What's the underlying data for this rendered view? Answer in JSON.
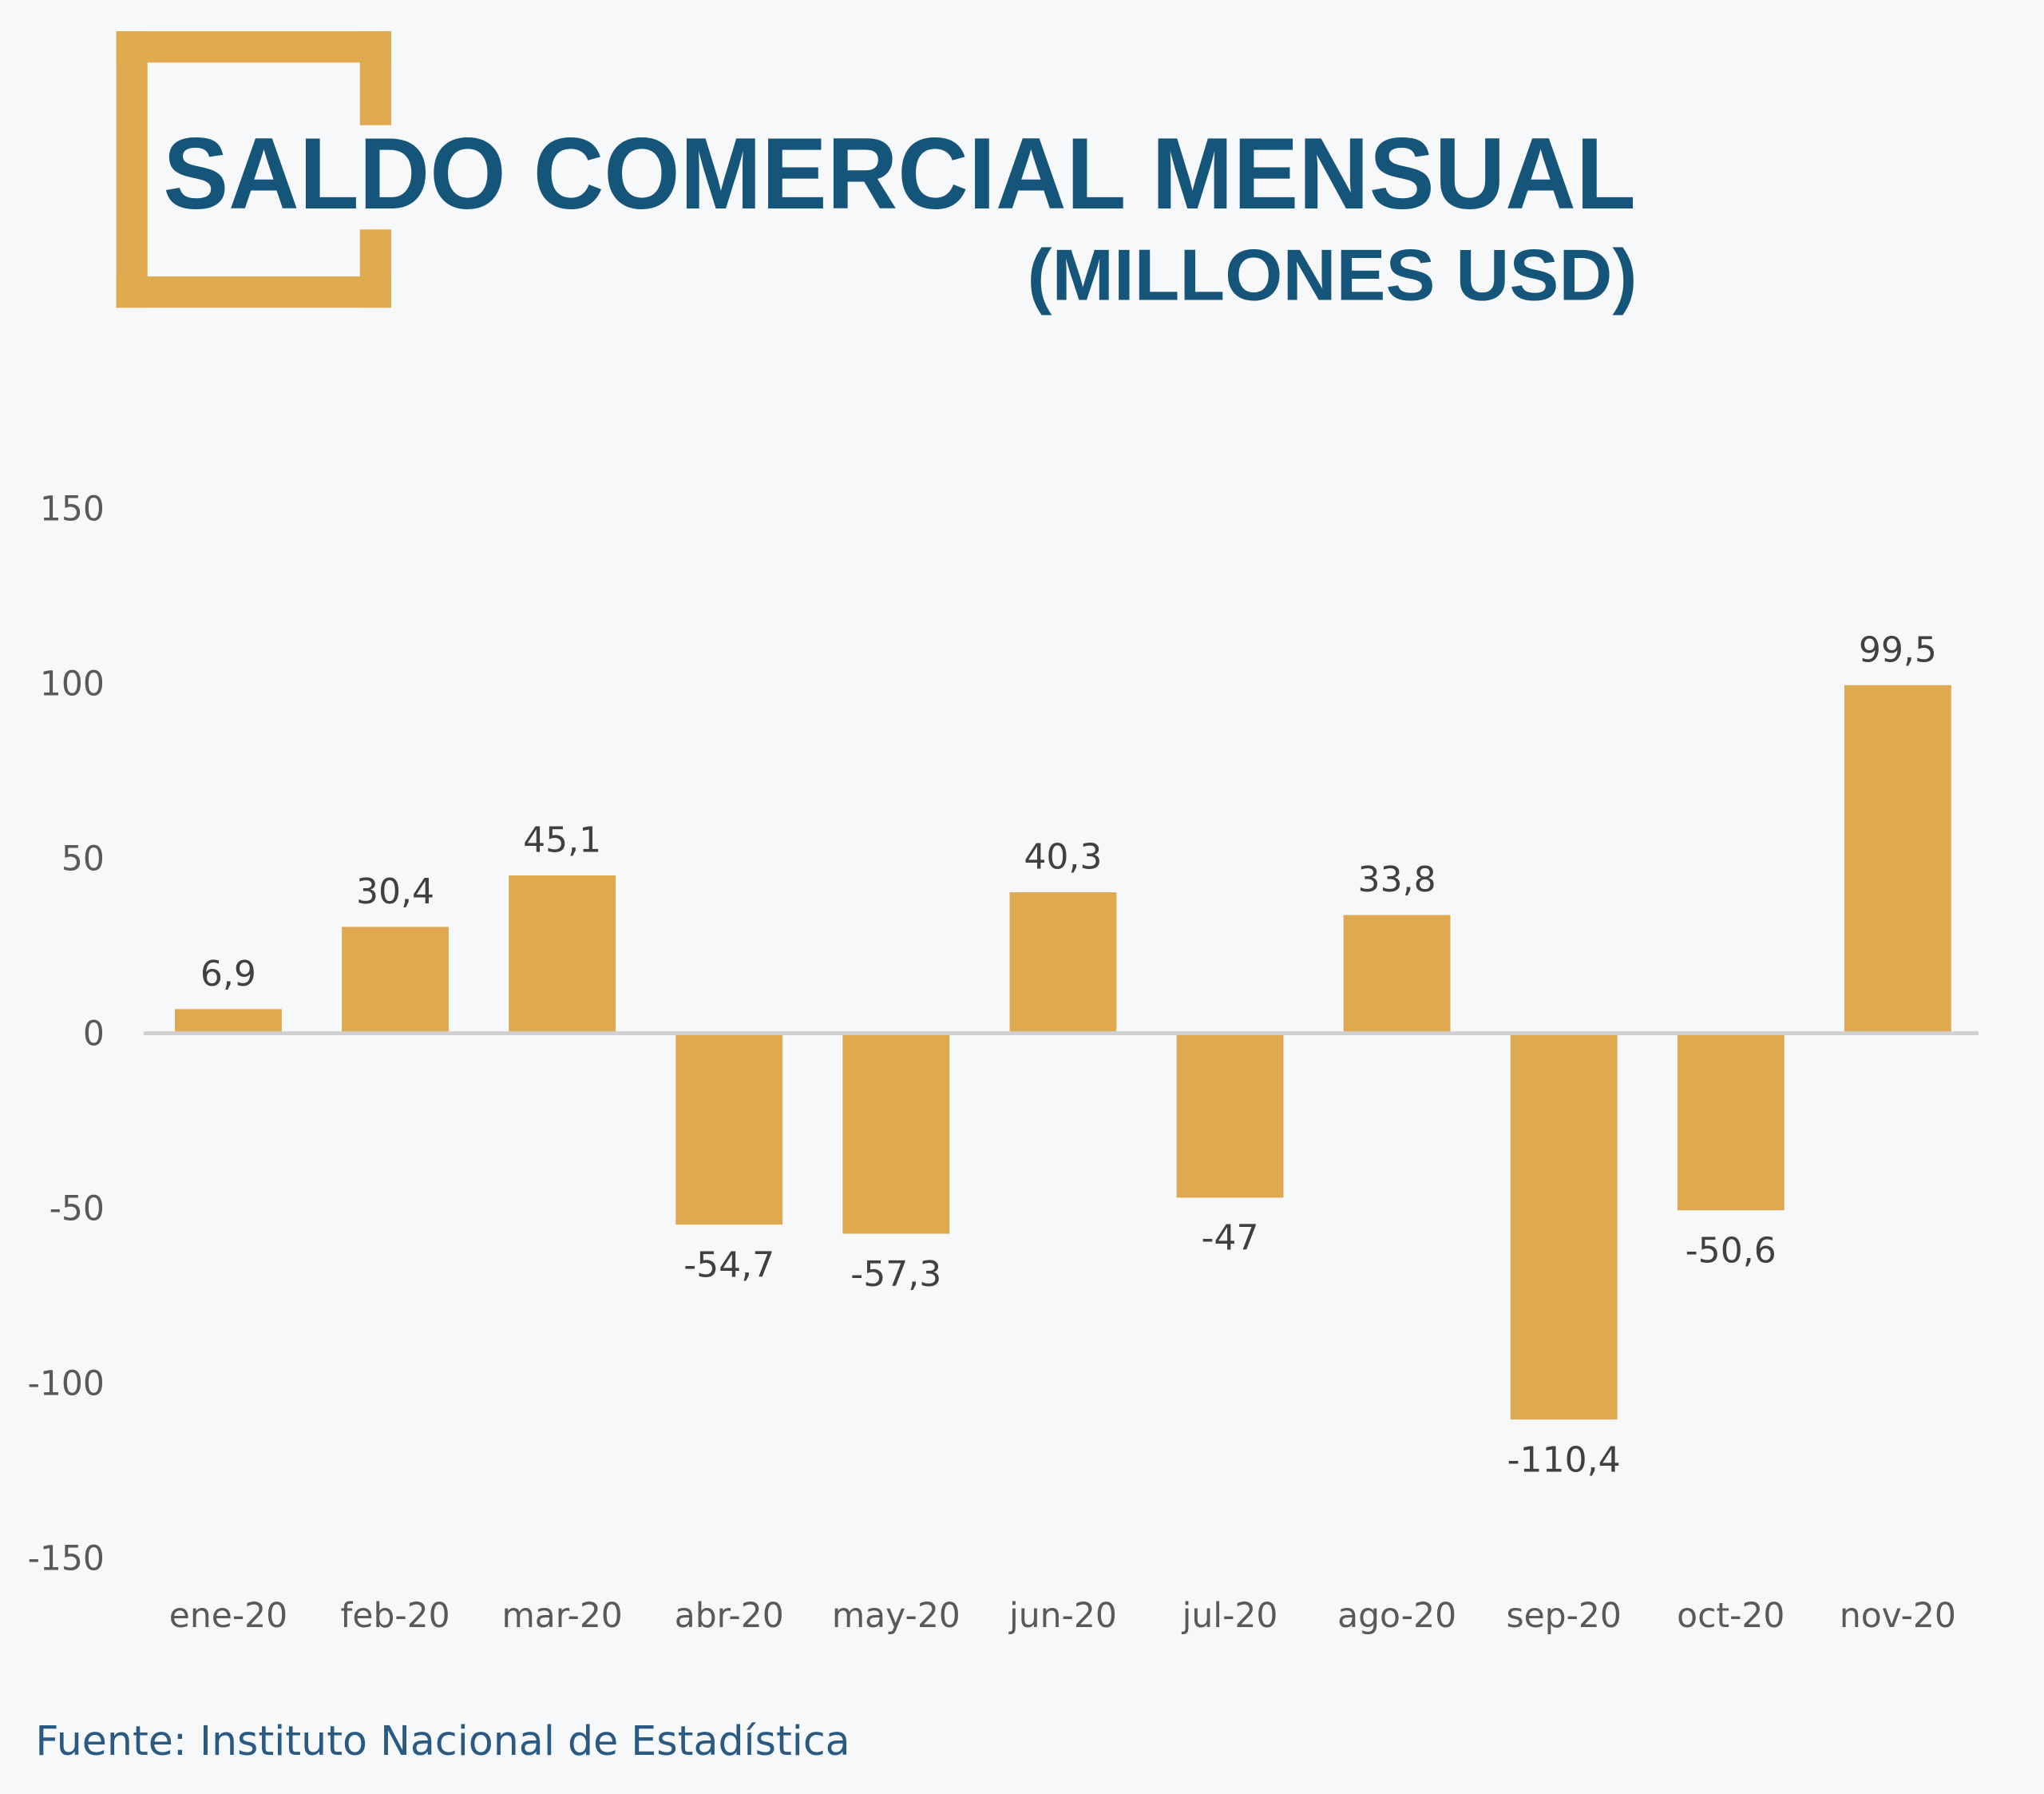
{
  "title": "SALDO COMERCIAL MENSUAL",
  "subtitle": "(MILLONES USD)",
  "source": "Fuente: Instituto Nacional de Estadística",
  "colors": {
    "bar": "#dfa94f",
    "title": "#15557a",
    "bracket": "#dfa94f",
    "axis": "#d0d0d0"
  },
  "chart_data": {
    "type": "bar",
    "title": "SALDO COMERCIAL MENSUAL (MILLONES USD)",
    "xlabel": "",
    "ylabel": "",
    "categories": [
      "ene-20",
      "feb-20",
      "mar-20",
      "abr-20",
      "may-20",
      "jun-20",
      "jul-20",
      "ago-20",
      "sep-20",
      "oct-20",
      "nov-20"
    ],
    "values": [
      6.9,
      30.4,
      45.1,
      -54.7,
      -57.3,
      40.3,
      -47,
      33.8,
      -110.4,
      -50.6,
      99.5
    ],
    "data_labels": [
      "6,9",
      "30,4",
      "45,1",
      "-54,7",
      "-57,3",
      "40,3",
      "-47",
      "33,8",
      "-110,4",
      "-50,6",
      "99,5"
    ],
    "ylim": [
      -150,
      150
    ],
    "yticks": [
      150,
      100,
      50,
      0,
      -50,
      -100,
      -150
    ],
    "ytick_labels": [
      "150",
      "100",
      "50",
      "0",
      "-50",
      "-100",
      "-150"
    ],
    "grid": false,
    "legend": "none"
  }
}
